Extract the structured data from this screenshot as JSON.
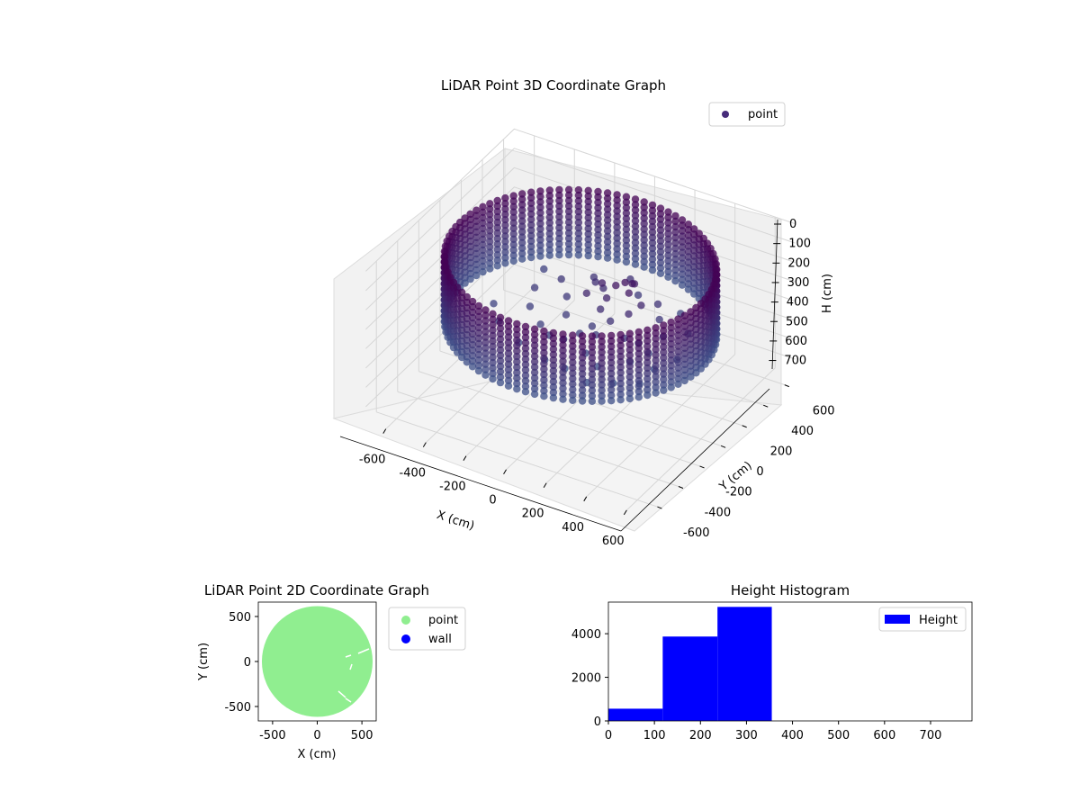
{
  "chart_data": [
    {
      "type": "scatter",
      "projection": "3d",
      "title": "LiDAR Point 3D Coordinate Graph",
      "xlabel": "X (cm)",
      "ylabel": "Y (cm)",
      "zlabel": "H (cm)",
      "xlim": [
        -700,
        700
      ],
      "ylim": [
        -700,
        700
      ],
      "zlim": [
        780,
        0
      ],
      "x_ticks": [
        "-600",
        "-400",
        "-200",
        "0",
        "200",
        "400",
        "600"
      ],
      "y_ticks": [
        "-600",
        "-400",
        "-200",
        "0",
        "200",
        "400",
        "600"
      ],
      "z_ticks": [
        "0",
        "100",
        "200",
        "300",
        "400",
        "500",
        "600",
        "700"
      ],
      "z_inverted": true,
      "grid": true,
      "legend_position": "top-right",
      "series": [
        {
          "name": "point",
          "color": "#472c7a",
          "colormap_range": [
            "#440154",
            "#3b528b"
          ],
          "wall": {
            "shape": "cylinder",
            "radius": 600,
            "h_range": [
              80,
              420
            ]
          },
          "interior_points": [
            [
              150,
              50,
              170
            ],
            [
              180,
              80,
              160
            ],
            [
              220,
              40,
              180
            ],
            [
              200,
              110,
              175
            ],
            [
              120,
              20,
              230
            ],
            [
              240,
              0,
              260
            ],
            [
              170,
              -40,
              300
            ],
            [
              100,
              -80,
              330
            ],
            [
              250,
              -60,
              350
            ],
            [
              300,
              -20,
              380
            ],
            [
              60,
              -120,
              360
            ],
            [
              0,
              -160,
              390
            ],
            [
              -60,
              -180,
              380
            ],
            [
              -120,
              -150,
              360
            ],
            [
              -40,
              -60,
              330
            ],
            [
              120,
              -180,
              410
            ],
            [
              200,
              -220,
              430
            ],
            [
              310,
              -120,
              420
            ],
            [
              360,
              -40,
              400
            ],
            [
              260,
              80,
              250
            ],
            [
              330,
              120,
              320
            ],
            [
              380,
              60,
              360
            ],
            [
              420,
              -100,
              430
            ],
            [
              150,
              260,
              330
            ],
            [
              90,
              300,
              290
            ],
            [
              -60,
              240,
              300
            ],
            [
              -180,
              160,
              310
            ],
            [
              -260,
              60,
              330
            ],
            [
              -220,
              -60,
              350
            ],
            [
              -100,
              60,
              320
            ],
            [
              40,
              140,
              270
            ],
            [
              -20,
              -300,
              430
            ],
            [
              80,
              -300,
              440
            ],
            [
              200,
              -320,
              460
            ],
            [
              300,
              -260,
              460
            ],
            [
              400,
              -200,
              460
            ],
            [
              460,
              40,
              440
            ],
            [
              430,
              200,
              400
            ],
            [
              -300,
              -200,
              380
            ],
            [
              -380,
              -100,
              370
            ],
            [
              -320,
              260,
              360
            ],
            [
              -160,
              -280,
              400
            ],
            [
              340,
              300,
              380
            ],
            [
              20,
              20,
              240
            ],
            [
              60,
              90,
              210
            ],
            [
              190,
              150,
              200
            ],
            [
              110,
              -20,
              270
            ],
            [
              280,
              200,
              300
            ],
            [
              -20,
              180,
              280
            ],
            [
              140,
              -120,
              340
            ]
          ]
        }
      ]
    },
    {
      "type": "scatter",
      "title": "LiDAR Point 2D Coordinate Graph",
      "xlabel": "X (cm)",
      "ylabel": "Y (cm)",
      "xlim": [
        -660,
        660
      ],
      "ylim": [
        -660,
        660
      ],
      "x_ticks": [
        "-500",
        "0",
        "500"
      ],
      "y_ticks": [
        "-500",
        "0",
        "500"
      ],
      "legend_position": "outside right",
      "series": [
        {
          "name": "point",
          "color": "#90ee90",
          "shape": "disc",
          "radius": 620
        },
        {
          "name": "wall",
          "color": "#0000ff"
        }
      ]
    },
    {
      "type": "histogram",
      "title": "Height Histogram",
      "xlim": [
        0,
        790
      ],
      "ylim": [
        0,
        5450
      ],
      "x_ticks": [
        "0",
        "100",
        "200",
        "300",
        "400",
        "500",
        "600",
        "700"
      ],
      "y_ticks": [
        "0",
        "2000",
        "4000"
      ],
      "legend_position": "top-right",
      "series": [
        {
          "name": "Height",
          "color": "#0000ff",
          "bins": [
            [
              0,
              118,
              560
            ],
            [
              118,
              237,
              3870
            ],
            [
              237,
              355,
              5230
            ],
            [
              355,
              474,
              0
            ],
            [
              474,
              592,
              0
            ],
            [
              592,
              711,
              0
            ],
            [
              711,
              790,
              0
            ]
          ]
        }
      ]
    }
  ]
}
